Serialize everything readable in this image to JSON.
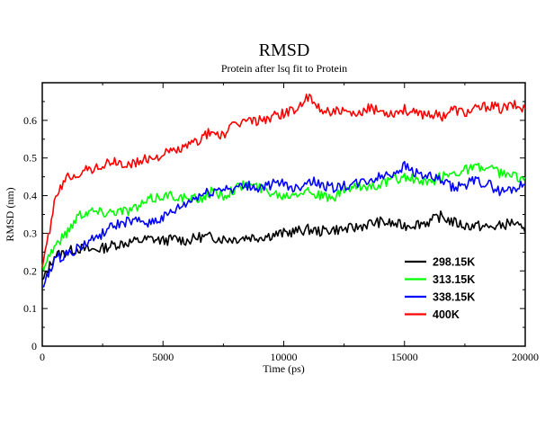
{
  "chart_data": {
    "type": "line",
    "title": "RMSD",
    "subtitle": "Protein after lsq fit to Protein",
    "xlabel": "Time (ps)",
    "ylabel": "RMSD (nm)",
    "xlim": [
      0,
      20000
    ],
    "ylim": [
      0,
      0.7
    ],
    "x_ticks": [
      0,
      5000,
      10000,
      15000,
      20000
    ],
    "y_ticks": [
      0,
      0.1,
      0.2,
      0.3,
      0.4,
      0.5,
      0.6
    ],
    "grid": false,
    "legend_position": "bottom-right",
    "x": [
      0,
      500,
      1000,
      1500,
      2000,
      2500,
      3000,
      3500,
      4000,
      4500,
      5000,
      5500,
      6000,
      6500,
      7000,
      7500,
      8000,
      8500,
      9000,
      9500,
      10000,
      10500,
      11000,
      11500,
      12000,
      12500,
      13000,
      13500,
      14000,
      14500,
      15000,
      15500,
      16000,
      16500,
      17000,
      17500,
      18000,
      18500,
      19000,
      19500,
      20000
    ],
    "series": [
      {
        "name": "298.15K",
        "color": "#000000",
        "values": [
          0.17,
          0.24,
          0.25,
          0.26,
          0.255,
          0.26,
          0.27,
          0.275,
          0.28,
          0.285,
          0.28,
          0.285,
          0.28,
          0.29,
          0.29,
          0.285,
          0.285,
          0.29,
          0.29,
          0.295,
          0.3,
          0.305,
          0.31,
          0.305,
          0.31,
          0.31,
          0.315,
          0.325,
          0.33,
          0.325,
          0.32,
          0.325,
          0.33,
          0.345,
          0.33,
          0.32,
          0.32,
          0.315,
          0.32,
          0.33,
          0.3
        ]
      },
      {
        "name": "313.15K",
        "color": "#00ff00",
        "values": [
          0.21,
          0.265,
          0.3,
          0.35,
          0.36,
          0.355,
          0.36,
          0.36,
          0.37,
          0.39,
          0.4,
          0.4,
          0.39,
          0.39,
          0.41,
          0.4,
          0.42,
          0.43,
          0.42,
          0.41,
          0.4,
          0.41,
          0.415,
          0.4,
          0.39,
          0.415,
          0.42,
          0.425,
          0.43,
          0.44,
          0.45,
          0.44,
          0.43,
          0.45,
          0.46,
          0.47,
          0.475,
          0.47,
          0.46,
          0.45,
          0.45
        ]
      },
      {
        "name": "338.15K",
        "color": "#0000ff",
        "values": [
          0.15,
          0.23,
          0.245,
          0.26,
          0.28,
          0.3,
          0.32,
          0.33,
          0.33,
          0.33,
          0.34,
          0.36,
          0.38,
          0.4,
          0.41,
          0.42,
          0.42,
          0.425,
          0.42,
          0.43,
          0.43,
          0.42,
          0.44,
          0.43,
          0.42,
          0.425,
          0.43,
          0.44,
          0.45,
          0.46,
          0.48,
          0.46,
          0.45,
          0.44,
          0.42,
          0.43,
          0.44,
          0.43,
          0.41,
          0.42,
          0.43
        ]
      },
      {
        "name": "400K",
        "color": "#ff0000",
        "values": [
          0.2,
          0.38,
          0.45,
          0.46,
          0.47,
          0.48,
          0.49,
          0.48,
          0.49,
          0.5,
          0.51,
          0.52,
          0.53,
          0.55,
          0.57,
          0.56,
          0.59,
          0.6,
          0.6,
          0.61,
          0.62,
          0.63,
          0.66,
          0.63,
          0.625,
          0.62,
          0.61,
          0.63,
          0.625,
          0.62,
          0.63,
          0.615,
          0.62,
          0.61,
          0.63,
          0.62,
          0.63,
          0.64,
          0.63,
          0.64,
          0.63
        ]
      }
    ]
  }
}
